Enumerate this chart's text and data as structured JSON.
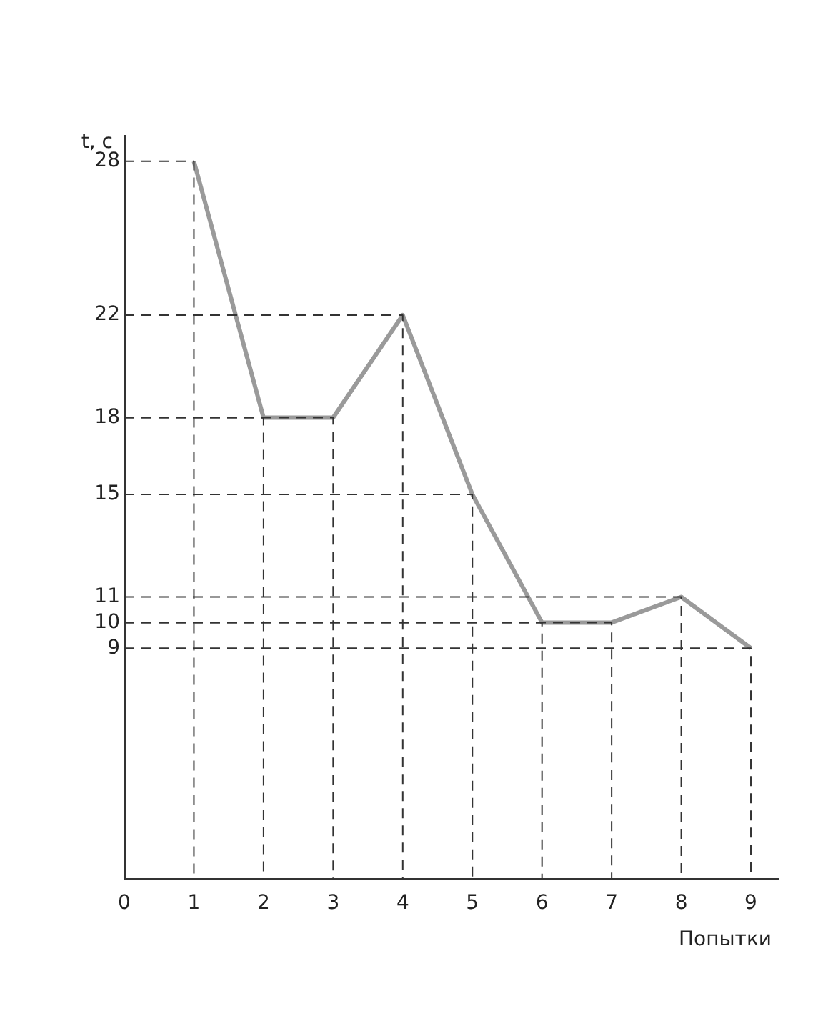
{
  "chart_data": {
    "type": "line",
    "xlabel": "Попытки",
    "ylabel": "t, c",
    "x": [
      1,
      2,
      3,
      4,
      5,
      6,
      7,
      8,
      9
    ],
    "series": [
      {
        "color": "#333333",
        "line_style": "dashed",
        "x": [
          0,
          1,
          1
        ],
        "values": [
          28,
          28,
          0
        ]
      },
      {
        "color": "#333333",
        "line_style": "dashed",
        "x": [
          0,
          2,
          2
        ],
        "values": [
          18,
          18,
          0
        ]
      },
      {
        "color": "#333333",
        "line_style": "dashed",
        "x": [
          0,
          3,
          3
        ],
        "values": [
          18,
          18,
          0
        ]
      },
      {
        "color": "#333333",
        "line_style": "dashed",
        "x": [
          0,
          4,
          4
        ],
        "values": [
          22,
          22,
          0
        ]
      },
      {
        "color": "#333333",
        "line_style": "dashed",
        "x": [
          0,
          5,
          5
        ],
        "values": [
          15,
          15,
          0
        ]
      },
      {
        "color": "#333333",
        "line_style": "dashed",
        "x": [
          0,
          6,
          6
        ],
        "values": [
          10,
          10,
          0
        ]
      },
      {
        "color": "#333333",
        "line_style": "dashed",
        "x": [
          0,
          7,
          7
        ],
        "values": [
          10,
          10,
          0
        ]
      },
      {
        "color": "#333333",
        "line_style": "dashed",
        "x": [
          0,
          8,
          8
        ],
        "values": [
          11,
          11,
          0
        ]
      },
      {
        "color": "#333333",
        "line_style": "dashed",
        "x": [
          0,
          9,
          9
        ],
        "values": [
          9,
          9,
          0
        ]
      },
      {
        "color": "#9a9a9a",
        "values": [
          28,
          18,
          18,
          22,
          15,
          10,
          10,
          11,
          9
        ]
      }
    ],
    "xlim": [
      0,
      9.4
    ],
    "xticks": [
      0,
      1,
      2,
      3,
      4,
      5,
      6,
      7,
      8,
      9
    ],
    "ylim": [
      0,
      29
    ],
    "yticks": [
      9,
      10,
      11,
      15,
      18,
      22,
      28
    ],
    "grid": false,
    "legend": false,
    "marker": "none",
    "line_style": "solid"
  }
}
